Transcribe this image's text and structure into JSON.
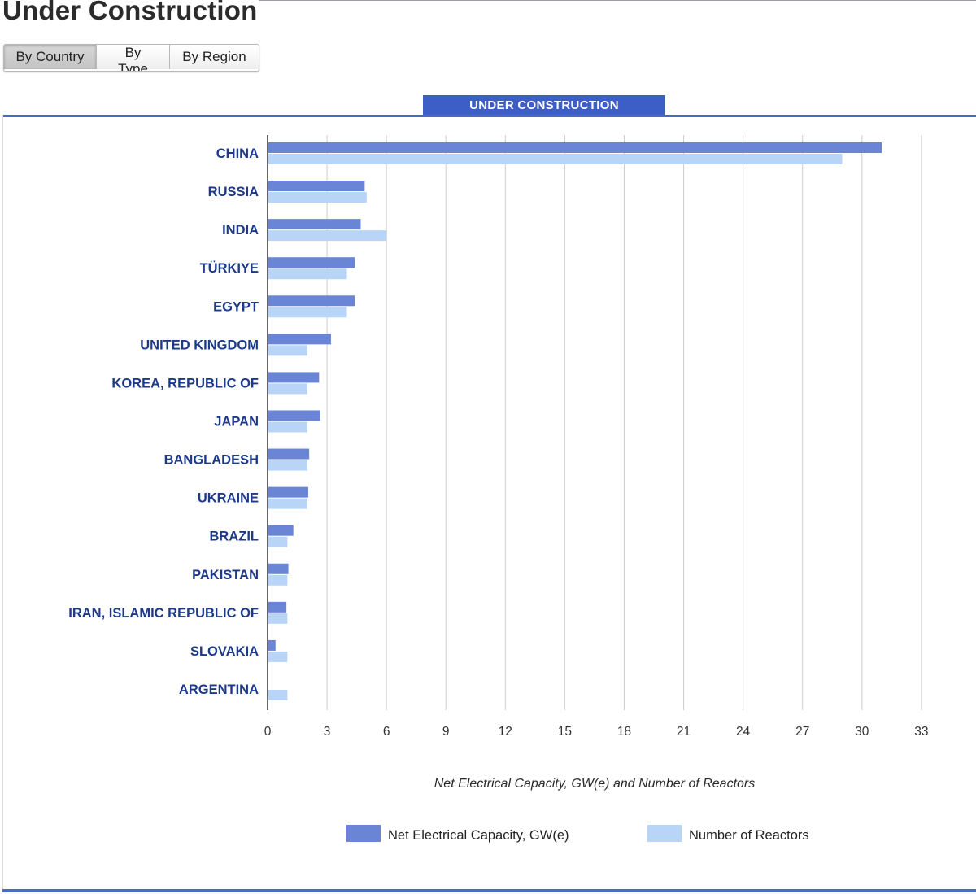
{
  "page": {
    "title": "Under Construction",
    "tabs": [
      {
        "label": "By Country",
        "active": true
      },
      {
        "label": "By Type",
        "active": false
      },
      {
        "label": "By Region",
        "active": false
      }
    ]
  },
  "colors": {
    "capacity": "#6a84d6",
    "reactors": "#b8d5f8",
    "header_bg": "#3c5ec6",
    "category_text": "#1d3a8a"
  },
  "chart_data": {
    "type": "bar",
    "orientation": "horizontal",
    "title": "UNDER CONSTRUCTION",
    "xlabel": "Net Electrical Capacity, GW(e) and Number of Reactors",
    "xlim": [
      0,
      33
    ],
    "xticks": [
      0,
      3,
      6,
      9,
      12,
      15,
      18,
      21,
      24,
      27,
      30,
      33
    ],
    "grid": true,
    "legend": "bottom",
    "categories": [
      "CHINA",
      "RUSSIA",
      "INDIA",
      "TÜRKIYE",
      "EGYPT",
      "UNITED KINGDOM",
      "KOREA, REPUBLIC OF",
      "JAPAN",
      "BANGLADESH",
      "UKRAINE",
      "BRAZIL",
      "PAKISTAN",
      "IRAN, ISLAMIC REPUBLIC OF",
      "SLOVAKIA",
      "ARGENTINA"
    ],
    "series": [
      {
        "name": "Net Electrical Capacity, GW(e)",
        "values": [
          31.0,
          4.9,
          4.7,
          4.4,
          4.4,
          3.2,
          2.6,
          2.65,
          2.1,
          2.05,
          1.3,
          1.05,
          0.95,
          0.4,
          0
        ]
      },
      {
        "name": "Number of Reactors",
        "values": [
          29,
          5,
          6,
          4,
          4,
          2,
          2,
          2,
          2,
          2,
          1,
          1,
          1,
          1,
          1
        ]
      }
    ]
  }
}
